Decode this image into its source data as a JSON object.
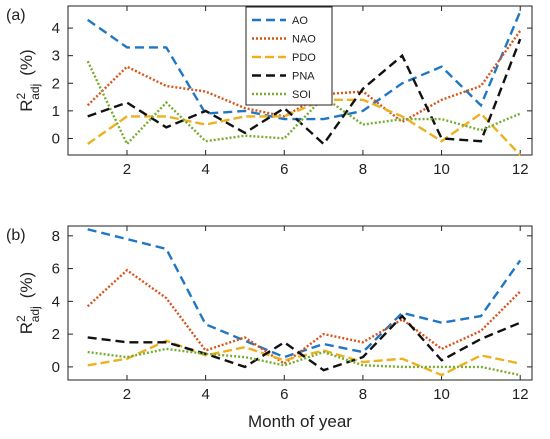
{
  "chart_data": [
    {
      "type": "line",
      "panel_label": "(a)",
      "x": [
        1,
        2,
        3,
        4,
        5,
        6,
        7,
        8,
        9,
        10,
        11,
        12
      ],
      "xlim": [
        0.5,
        12.3
      ],
      "ylim": [
        -0.6,
        4.8
      ],
      "xticks": [
        2,
        4,
        6,
        8,
        10,
        12
      ],
      "yticks": [
        0,
        1,
        2,
        3,
        4
      ],
      "ylabel_main": "R",
      "ylabel_sup": "2",
      "ylabel_sub": "adj",
      "ylabel_unit": "(%)",
      "xlabel": "",
      "legend_position": "top-center",
      "series": [
        {
          "name": "AO",
          "color": "#1f77c4",
          "dash": "9,5",
          "values": [
            4.3,
            3.3,
            3.3,
            0.9,
            1.0,
            0.7,
            0.7,
            1.0,
            2.0,
            2.6,
            1.2,
            4.6
          ]
        },
        {
          "name": "NAO",
          "color": "#d95319",
          "dash": "2,2",
          "values": [
            1.2,
            2.6,
            1.9,
            1.7,
            1.1,
            0.8,
            1.6,
            1.7,
            0.6,
            1.4,
            1.9,
            3.9
          ]
        },
        {
          "name": "PDO",
          "color": "#edb120",
          "dash": "9,4",
          "values": [
            -0.2,
            0.8,
            0.8,
            0.5,
            0.8,
            0.8,
            1.4,
            1.4,
            0.8,
            -0.1,
            0.9,
            -0.6
          ]
        },
        {
          "name": "PNA",
          "color": "#111111",
          "dash": "9,5",
          "values": [
            0.8,
            1.3,
            0.4,
            1.0,
            0.2,
            1.1,
            -0.2,
            1.8,
            3.0,
            0.0,
            -0.1,
            3.6
          ]
        },
        {
          "name": "SOI",
          "color": "#77ac30",
          "dash": "2,2",
          "values": [
            2.8,
            -0.2,
            1.3,
            -0.1,
            0.1,
            0.0,
            1.5,
            0.5,
            0.7,
            0.7,
            0.3,
            0.9
          ]
        }
      ]
    },
    {
      "type": "line",
      "panel_label": "(b)",
      "x": [
        1,
        2,
        3,
        4,
        5,
        6,
        7,
        8,
        9,
        10,
        11,
        12
      ],
      "xlim": [
        0.5,
        12.3
      ],
      "ylim": [
        -0.8,
        8.6
      ],
      "xticks": [
        2,
        4,
        6,
        8,
        10,
        12
      ],
      "yticks": [
        0,
        2,
        4,
        6,
        8
      ],
      "ylabel_main": "R",
      "ylabel_sup": "2",
      "ylabel_sub": "adj",
      "ylabel_unit": "(%)",
      "xlabel": "Month of year",
      "series": [
        {
          "name": "AO",
          "color": "#1f77c4",
          "dash": "9,5",
          "values": [
            8.4,
            7.8,
            7.2,
            2.6,
            1.6,
            0.6,
            1.4,
            0.9,
            3.3,
            2.7,
            3.1,
            6.5
          ]
        },
        {
          "name": "NAO",
          "color": "#d95319",
          "dash": "2,2",
          "values": [
            3.7,
            5.9,
            4.2,
            1.0,
            1.8,
            0.2,
            2.0,
            1.5,
            2.9,
            1.1,
            2.2,
            4.6
          ]
        },
        {
          "name": "PDO",
          "color": "#edb120",
          "dash": "9,4",
          "values": [
            0.1,
            0.5,
            1.6,
            0.7,
            1.2,
            0.4,
            1.0,
            0.3,
            0.5,
            -0.5,
            0.7,
            0.2
          ]
        },
        {
          "name": "PNA",
          "color": "#111111",
          "dash": "9,5",
          "values": [
            1.8,
            1.5,
            1.5,
            0.8,
            0.0,
            1.5,
            -0.2,
            0.6,
            3.1,
            0.4,
            1.7,
            2.7
          ]
        },
        {
          "name": "SOI",
          "color": "#77ac30",
          "dash": "2,2",
          "values": [
            0.9,
            0.6,
            1.1,
            0.8,
            0.6,
            0.1,
            0.9,
            0.1,
            0.0,
            0.0,
            0.0,
            -0.5
          ]
        }
      ]
    }
  ]
}
